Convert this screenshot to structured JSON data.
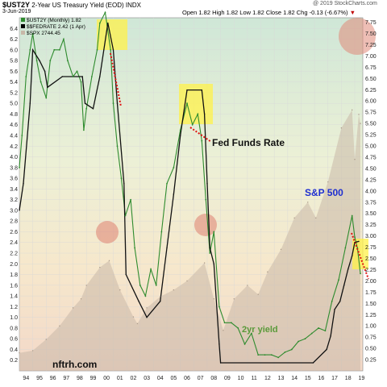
{
  "header": {
    "symbol": "$UST2Y",
    "description": "2-Year US Treasury Yield (EOD)",
    "exchange": "INDX",
    "date": "3-Jun-2019",
    "ohlc": "Open 1.82  High 1.82  Low 1.82  Close 1.82  Chg -0.13 (-6.67%)",
    "chg_arrow": "▼",
    "watermark": "@ 2019 StockCharts.com",
    "legend": [
      {
        "label": "$UST2Y (Monthly) 1.82",
        "color": "#2e8b2e"
      },
      {
        "label": "$$FEDRATE 2.42 (1 Apr)",
        "color": "#000000"
      },
      {
        "label": "$SPX 2744.45",
        "color": "#c8b8a8"
      }
    ]
  },
  "annotations": {
    "fed_funds": "Fed Funds Rate",
    "sp500": "S&P 500",
    "two_year": "2yr yield",
    "brand": "nftrh.com"
  },
  "chart_data": {
    "type": "line",
    "x_ticks": [
      "94",
      "95",
      "96",
      "97",
      "98",
      "99",
      "00",
      "01",
      "02",
      "03",
      "04",
      "05",
      "06",
      "07",
      "08",
      "09",
      "10",
      "11",
      "12",
      "13",
      "14",
      "15",
      "16",
      "17",
      "18",
      "19"
    ],
    "y_left_ticks": [
      "6.4",
      "6.2",
      "6.0",
      "5.8",
      "5.6",
      "5.4",
      "5.2",
      "5.0",
      "4.8",
      "4.6",
      "4.4",
      "4.2",
      "4.0",
      "3.8",
      "3.6",
      "3.4",
      "3.2",
      "3.0",
      "2.8",
      "2.6",
      "2.4",
      "2.2",
      "2.0",
      "1.8",
      "1.6",
      "1.4",
      "1.2",
      "1.0",
      "0.8",
      "0.6",
      "0.4",
      "0.2"
    ],
    "y_right_ticks": [
      "7.75",
      "7.50",
      "7.25",
      "7.00",
      "6.75",
      "6.50",
      "6.25",
      "6.00",
      "5.75",
      "5.50",
      "5.25",
      "5.00",
      "4.75",
      "4.50",
      "4.25",
      "4.00",
      "3.75",
      "3.50",
      "3.25",
      "3.00",
      "2.75",
      "2.50",
      "2.25",
      "2.00",
      "1.75",
      "1.50",
      "1.25",
      "1.00",
      "0.75",
      "0.50",
      "0.25"
    ],
    "ylim_left": [
      0,
      6.6
    ],
    "ylim_right": [
      0,
      7.85
    ],
    "xlim": [
      1994,
      2019.6
    ],
    "series": [
      {
        "name": "$UST2Y (Monthly) 1.82",
        "axis": "left",
        "x": [
          1994.0,
          1994.2,
          1994.5,
          1994.8,
          1995.0,
          1995.3,
          1995.6,
          1996.0,
          1996.3,
          1996.6,
          1997.0,
          1997.3,
          1997.6,
          1998.0,
          1998.3,
          1998.6,
          1998.8,
          1999.0,
          1999.4,
          1999.8,
          2000.0,
          2000.4,
          2000.8,
          2001.0,
          2001.3,
          2001.6,
          2001.9,
          2002.3,
          2002.6,
          2003.0,
          2003.4,
          2003.8,
          2004.2,
          2004.6,
          2005.0,
          2005.5,
          2006.0,
          2006.5,
          2006.9,
          2007.3,
          2007.6,
          2007.9,
          2008.2,
          2008.5,
          2008.9,
          2009.3,
          2009.8,
          2010.3,
          2010.8,
          2011.3,
          2011.8,
          2012.3,
          2012.8,
          2013.3,
          2013.8,
          2014.3,
          2014.8,
          2015.3,
          2015.8,
          2016.3,
          2016.8,
          2017.3,
          2017.8,
          2018.3,
          2018.8,
          2019.0,
          2019.2,
          2019.42
        ],
        "y": [
          3.8,
          4.4,
          5.5,
          6.0,
          6.3,
          5.8,
          5.4,
          5.1,
          5.8,
          6.0,
          6.0,
          6.2,
          5.8,
          5.5,
          5.6,
          5.4,
          4.5,
          4.9,
          5.5,
          6.0,
          6.5,
          6.7,
          6.0,
          5.0,
          4.2,
          3.6,
          2.9,
          3.2,
          2.3,
          1.6,
          1.4,
          1.9,
          1.6,
          2.6,
          3.5,
          3.8,
          4.5,
          5.0,
          4.6,
          4.8,
          4.3,
          3.2,
          2.2,
          2.6,
          1.2,
          0.9,
          0.9,
          0.8,
          0.5,
          0.7,
          0.3,
          0.3,
          0.3,
          0.25,
          0.35,
          0.4,
          0.55,
          0.6,
          0.7,
          0.8,
          0.75,
          1.3,
          1.7,
          2.3,
          2.9,
          2.5,
          2.3,
          1.82
        ]
      },
      {
        "name": "$$FEDRATE 2.42 (1 Apr)",
        "axis": "left",
        "x": [
          1994.0,
          1994.3,
          1994.8,
          1995.0,
          1995.5,
          1995.9,
          1996.1,
          1997.2,
          1998.7,
          1998.9,
          1999.5,
          2000.0,
          2000.3,
          2000.6,
          2001.0,
          2001.3,
          2001.8,
          2001.95,
          2002.9,
          2003.5,
          2004.5,
          2005.0,
          2005.5,
          2006.0,
          2006.5,
          2007.6,
          2007.8,
          2008.0,
          2008.2,
          2008.5,
          2008.9,
          2009.0,
          2015.9,
          2016.9,
          2017.2,
          2017.5,
          2017.9,
          2018.2,
          2018.5,
          2018.8,
          2019.0,
          2019.3
        ],
        "y": [
          3.0,
          3.5,
          5.0,
          6.0,
          5.8,
          5.6,
          5.3,
          5.5,
          5.5,
          5.0,
          4.9,
          5.5,
          6.0,
          6.5,
          6.0,
          5.0,
          3.5,
          1.8,
          1.3,
          1.0,
          1.3,
          2.3,
          3.3,
          4.4,
          5.25,
          5.25,
          4.8,
          3.5,
          2.3,
          2.0,
          0.5,
          0.15,
          0.15,
          0.4,
          0.65,
          1.15,
          1.3,
          1.6,
          1.9,
          2.15,
          2.4,
          2.42
        ]
      },
      {
        "name": "$SPX 2744.45",
        "axis": "right",
        "x": [
          1994.0,
          1995.0,
          1996.0,
          1997.0,
          1998.0,
          1998.6,
          1999.0,
          2000.0,
          2000.7,
          2001.5,
          2002.5,
          2002.8,
          2003.5,
          2004.5,
          2005.5,
          2006.5,
          2007.8,
          2008.5,
          2009.2,
          2010.0,
          2011.0,
          2011.8,
          2012.5,
          2013.5,
          2014.5,
          2015.5,
          2016.1,
          2017.0,
          2018.0,
          2018.8,
          2019.0,
          2019.3,
          2019.42
        ],
        "y": [
          0.4,
          0.45,
          0.7,
          1.0,
          1.4,
          1.6,
          1.9,
          2.3,
          2.45,
          1.8,
          1.2,
          1.05,
          1.4,
          1.65,
          1.8,
          2.0,
          2.4,
          1.6,
          0.9,
          1.6,
          1.9,
          1.7,
          2.2,
          2.7,
          3.4,
          3.75,
          3.4,
          4.2,
          5.4,
          5.8,
          4.7,
          5.7,
          5.5
        ]
      }
    ]
  }
}
